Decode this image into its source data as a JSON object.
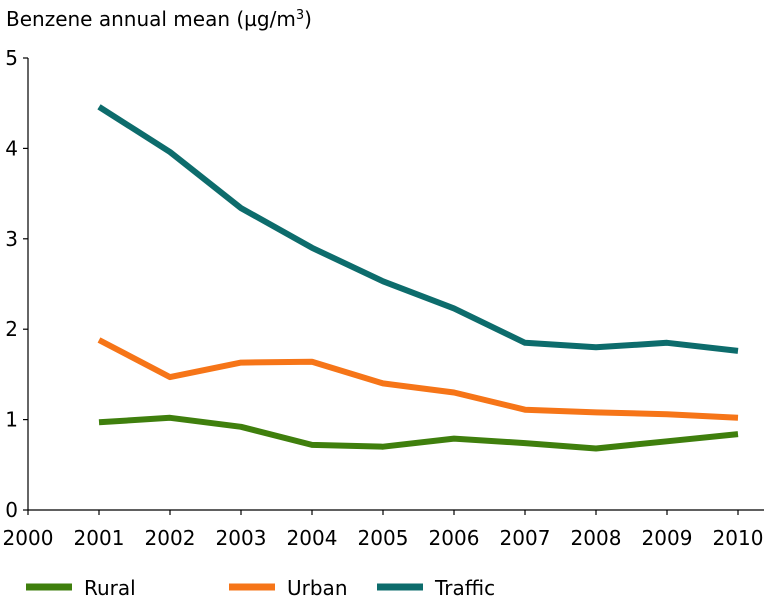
{
  "chart_data": {
    "type": "line",
    "title": "",
    "ylabel_parts": {
      "main": "Benzene annual mean (µg/m",
      "sup": "3",
      "close": ")"
    },
    "xlabel": "",
    "x": [
      2001,
      2002,
      2003,
      2004,
      2005,
      2006,
      2007,
      2008,
      2009,
      2010
    ],
    "xticks": [
      "2000",
      "2001",
      "2002",
      "2003",
      "2004",
      "2005",
      "2006",
      "2007",
      "2008",
      "2009",
      "2010"
    ],
    "xlim": [
      2000,
      2010
    ],
    "yticks": [
      "0",
      "1",
      "2",
      "3",
      "4",
      "5"
    ],
    "ylim": [
      0,
      5
    ],
    "grid": false,
    "legend_position": "bottom",
    "series": [
      {
        "name": "Rural",
        "color": "#3f7f0d",
        "values": [
          0.97,
          1.02,
          0.92,
          0.72,
          0.7,
          0.79,
          0.74,
          0.68,
          0.76,
          0.84
        ]
      },
      {
        "name": "Urban",
        "color": "#f67518",
        "values": [
          1.88,
          1.47,
          1.63,
          1.64,
          1.4,
          1.3,
          1.11,
          1.08,
          1.06,
          1.02
        ]
      },
      {
        "name": "Traffic",
        "color": "#0d6c6c",
        "values": [
          4.46,
          3.96,
          3.34,
          2.9,
          2.53,
          2.23,
          1.85,
          1.8,
          1.85,
          1.76
        ]
      }
    ]
  }
}
